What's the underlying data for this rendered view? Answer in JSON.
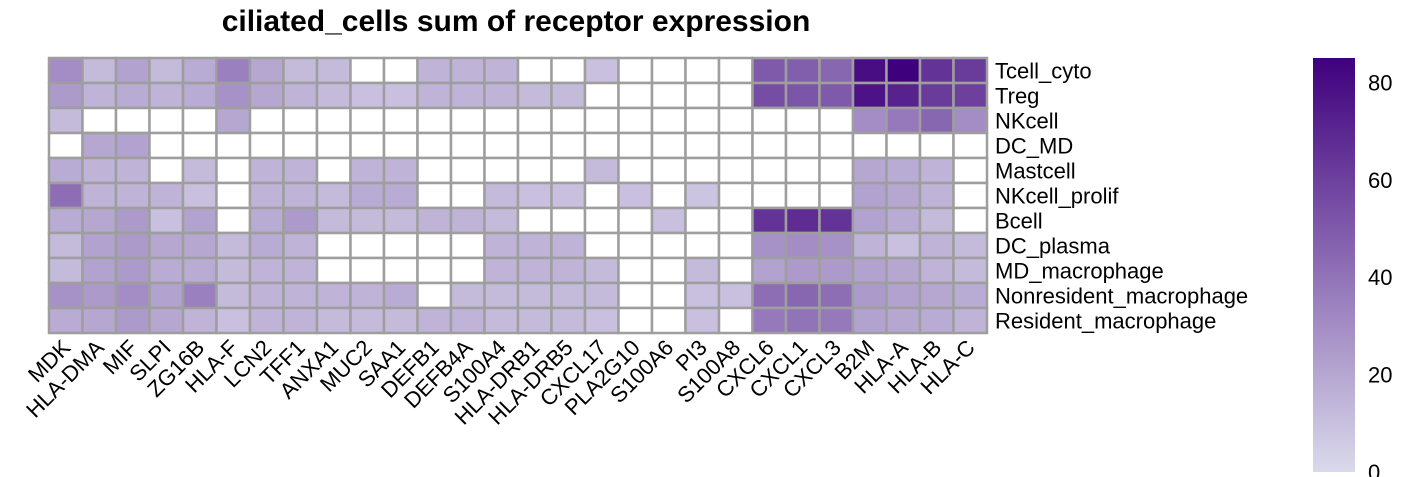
{
  "chart_data": {
    "type": "heatmap",
    "title": "ciliated_cells sum of receptor expression",
    "columns": [
      "MDK",
      "HLA-DMA",
      "MIF",
      "SLPI",
      "ZG16B",
      "HLA-F",
      "LCN2",
      "TFF1",
      "ANXA1",
      "MUC2",
      "SAA1",
      "DEFB1",
      "DEFB4A",
      "S100A4",
      "HLA-DRB1",
      "HLA-DRB5",
      "CXCL17",
      "PLA2G10",
      "S100A6",
      "PI3",
      "S100A8",
      "CXCL6",
      "CXCL1",
      "CXCL3",
      "B2M",
      "HLA-A",
      "HLA-B",
      "HLA-C"
    ],
    "rows": [
      "Tcell_cyto",
      "Treg",
      "NKcell",
      "DC_MD",
      "Mastcell",
      "NKcell_prolif",
      "Bcell",
      "DC_plasma",
      "MD_macrophage",
      "Nonresident_macrophage",
      "Resident_macrophage"
    ],
    "values": [
      [
        30,
        12,
        22,
        12,
        18,
        35,
        20,
        12,
        12,
        null,
        null,
        15,
        15,
        15,
        null,
        null,
        10,
        null,
        null,
        null,
        null,
        50,
        48,
        45,
        80,
        85,
        65,
        62
      ],
      [
        25,
        15,
        18,
        15,
        18,
        28,
        20,
        15,
        12,
        10,
        10,
        15,
        15,
        15,
        12,
        12,
        null,
        null,
        null,
        null,
        null,
        55,
        52,
        50,
        78,
        72,
        62,
        60
      ],
      [
        12,
        null,
        null,
        null,
        null,
        20,
        null,
        null,
        null,
        null,
        null,
        null,
        null,
        null,
        null,
        null,
        null,
        null,
        null,
        null,
        null,
        null,
        null,
        null,
        30,
        38,
        45,
        30
      ],
      [
        null,
        20,
        22,
        null,
        null,
        null,
        null,
        null,
        null,
        null,
        null,
        null,
        null,
        null,
        null,
        null,
        null,
        null,
        null,
        null,
        null,
        null,
        null,
        null,
        null,
        null,
        null,
        null
      ],
      [
        18,
        15,
        15,
        null,
        12,
        null,
        15,
        15,
        null,
        15,
        15,
        null,
        null,
        null,
        null,
        null,
        12,
        null,
        null,
        null,
        null,
        null,
        null,
        null,
        20,
        18,
        15,
        null
      ],
      [
        42,
        15,
        15,
        15,
        10,
        null,
        15,
        15,
        12,
        18,
        18,
        null,
        null,
        12,
        10,
        10,
        null,
        10,
        null,
        8,
        null,
        null,
        null,
        null,
        22,
        20,
        15,
        null
      ],
      [
        18,
        20,
        25,
        10,
        22,
        null,
        18,
        25,
        12,
        12,
        12,
        15,
        15,
        12,
        null,
        null,
        null,
        null,
        10,
        null,
        null,
        65,
        68,
        65,
        22,
        18,
        12,
        null
      ],
      [
        12,
        22,
        25,
        20,
        20,
        12,
        18,
        15,
        null,
        null,
        null,
        null,
        null,
        15,
        15,
        15,
        null,
        null,
        null,
        null,
        null,
        28,
        30,
        28,
        15,
        10,
        15,
        12
      ],
      [
        12,
        22,
        25,
        18,
        18,
        12,
        15,
        15,
        null,
        null,
        null,
        null,
        null,
        15,
        15,
        15,
        12,
        null,
        null,
        12,
        null,
        22,
        25,
        25,
        22,
        20,
        15,
        12
      ],
      [
        28,
        25,
        30,
        22,
        35,
        12,
        15,
        15,
        15,
        15,
        18,
        null,
        12,
        12,
        12,
        12,
        12,
        null,
        null,
        10,
        10,
        42,
        45,
        42,
        25,
        22,
        20,
        18
      ],
      [
        18,
        20,
        25,
        20,
        15,
        10,
        15,
        15,
        12,
        12,
        12,
        15,
        15,
        12,
        12,
        12,
        10,
        null,
        null,
        10,
        null,
        38,
        40,
        38,
        22,
        20,
        18,
        15
      ]
    ],
    "color_scale": {
      "min": 0,
      "max": 85,
      "low_color": "#DADAEB",
      "high_color": "#3F007D",
      "na_color": "#FFFFFF",
      "ticks": [
        0,
        20,
        40,
        60,
        80
      ]
    },
    "grid_color": "#9E9E9E"
  }
}
